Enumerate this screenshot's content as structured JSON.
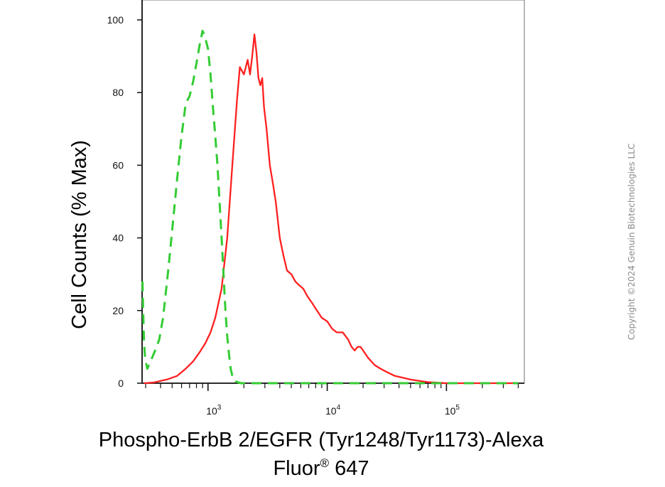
{
  "chart_data": {
    "type": "line",
    "title": "",
    "xlabel_line1": "Phospho-ErbB 2/EGFR (Tyr1248/Tyr1173)-Alexa",
    "xlabel_line2": "Fluor",
    "xlabel_sup": "®",
    "xlabel_line2_suffix": " 647",
    "ylabel": "Cell Counts (% Max)",
    "x_scale": "log",
    "xlim": [
      280,
      450000
    ],
    "ylim": [
      0,
      100
    ],
    "y_ticks": [
      0,
      20,
      40,
      60,
      80,
      100
    ],
    "x_major_ticks": [
      {
        "value": 1000,
        "base": "10",
        "exp": "3"
      },
      {
        "value": 10000,
        "base": "10",
        "exp": "4"
      },
      {
        "value": 100000,
        "base": "10",
        "exp": "5"
      }
    ],
    "grid": false,
    "legend": "none",
    "series": [
      {
        "color": "#ff2020",
        "style": "solid",
        "x": [
          290,
          350,
          450,
          550,
          650,
          750,
          850,
          950,
          1050,
          1150,
          1300,
          1450,
          1600,
          1750,
          1850,
          2000,
          2150,
          2250,
          2350,
          2450,
          2550,
          2650,
          2750,
          2850,
          2950,
          3100,
          3300,
          3500,
          3700,
          4000,
          4300,
          4600,
          5000,
          5400,
          5800,
          6300,
          6800,
          7500,
          8200,
          9000,
          10000,
          11000,
          12000,
          13500,
          15000,
          16000,
          17000,
          18000,
          19000,
          20000,
          22000,
          25000,
          28000,
          32000,
          37000,
          43000,
          50000,
          60000,
          70000,
          80000,
          90000,
          100000,
          150000,
          200000,
          300000,
          400000
        ],
        "y": [
          0,
          0.2,
          1,
          2,
          4,
          6,
          8.5,
          11,
          14,
          18,
          26,
          40,
          60,
          78,
          87,
          85,
          89,
          85,
          90,
          96,
          91,
          84,
          82,
          84,
          76,
          70,
          60,
          55,
          50,
          40,
          35,
          31,
          30,
          28,
          27,
          26,
          24,
          22,
          20,
          18,
          17,
          15,
          14,
          14,
          12,
          10,
          9,
          10,
          10,
          9,
          7,
          5,
          4,
          3,
          2,
          1.5,
          1,
          0.6,
          0.3,
          0.2,
          0.1,
          0,
          0,
          0,
          0,
          0
        ]
      },
      {
        "color": "#33cc33",
        "style": "dashed",
        "x": [
          282,
          286,
          290,
          295,
          300,
          310,
          320,
          340,
          360,
          390,
          420,
          460,
          500,
          550,
          600,
          650,
          700,
          750,
          800,
          850,
          900,
          950,
          1000,
          1050,
          1100,
          1150,
          1200,
          1250,
          1300,
          1350,
          1400,
          1450,
          1500,
          1550,
          1600,
          1650,
          1700,
          1800,
          1900,
          2000,
          2200,
          2500,
          3000,
          5000,
          10000,
          50000,
          100000,
          200000,
          400000
        ],
        "y": [
          28,
          20,
          12,
          8,
          6,
          4,
          5,
          7,
          9,
          12,
          18,
          30,
          42,
          56,
          68,
          77,
          79,
          83,
          88,
          93,
          97,
          95,
          92,
          85,
          76,
          68,
          60,
          50,
          40,
          30,
          20,
          13,
          8,
          4,
          2,
          1,
          0.5,
          0.2,
          0,
          0,
          0,
          0,
          0,
          0,
          0,
          0,
          0,
          0,
          0
        ]
      }
    ]
  },
  "watermark": "Copyright ©2024 Genuin Biotechnologies LLC"
}
